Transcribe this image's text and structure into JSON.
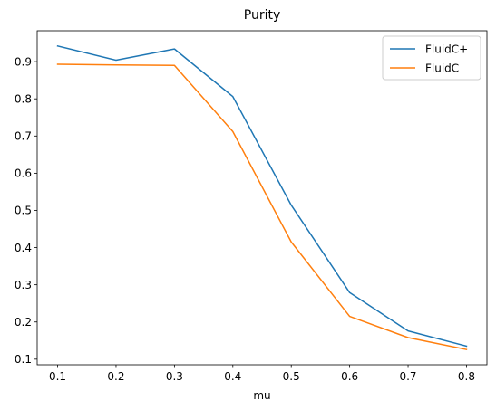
{
  "chart_data": {
    "type": "line",
    "title": "Purity",
    "xlabel": "mu",
    "ylabel": "",
    "x": [
      0.1,
      0.2,
      0.3,
      0.4,
      0.5,
      0.6,
      0.7,
      0.8
    ],
    "series": [
      {
        "name": "FluidC+",
        "color": "#1f77b4",
        "values": [
          0.942,
          0.904,
          0.934,
          0.806,
          0.514,
          0.279,
          0.176,
          0.135
        ]
      },
      {
        "name": "FluidC",
        "color": "#ff7f0e",
        "values": [
          0.893,
          0.891,
          0.89,
          0.712,
          0.415,
          0.215,
          0.158,
          0.126
        ]
      }
    ],
    "xticks": [
      "0.1",
      "0.2",
      "0.3",
      "0.4",
      "0.5",
      "0.6",
      "0.7",
      "0.8"
    ],
    "yticks": [
      "0.1",
      "0.2",
      "0.3",
      "0.4",
      "0.5",
      "0.6",
      "0.7",
      "0.8",
      "0.9"
    ],
    "xlim": [
      0.065,
      0.835
    ],
    "ylim": [
      0.085,
      0.983
    ],
    "grid": false,
    "legend_position": "top-right"
  }
}
